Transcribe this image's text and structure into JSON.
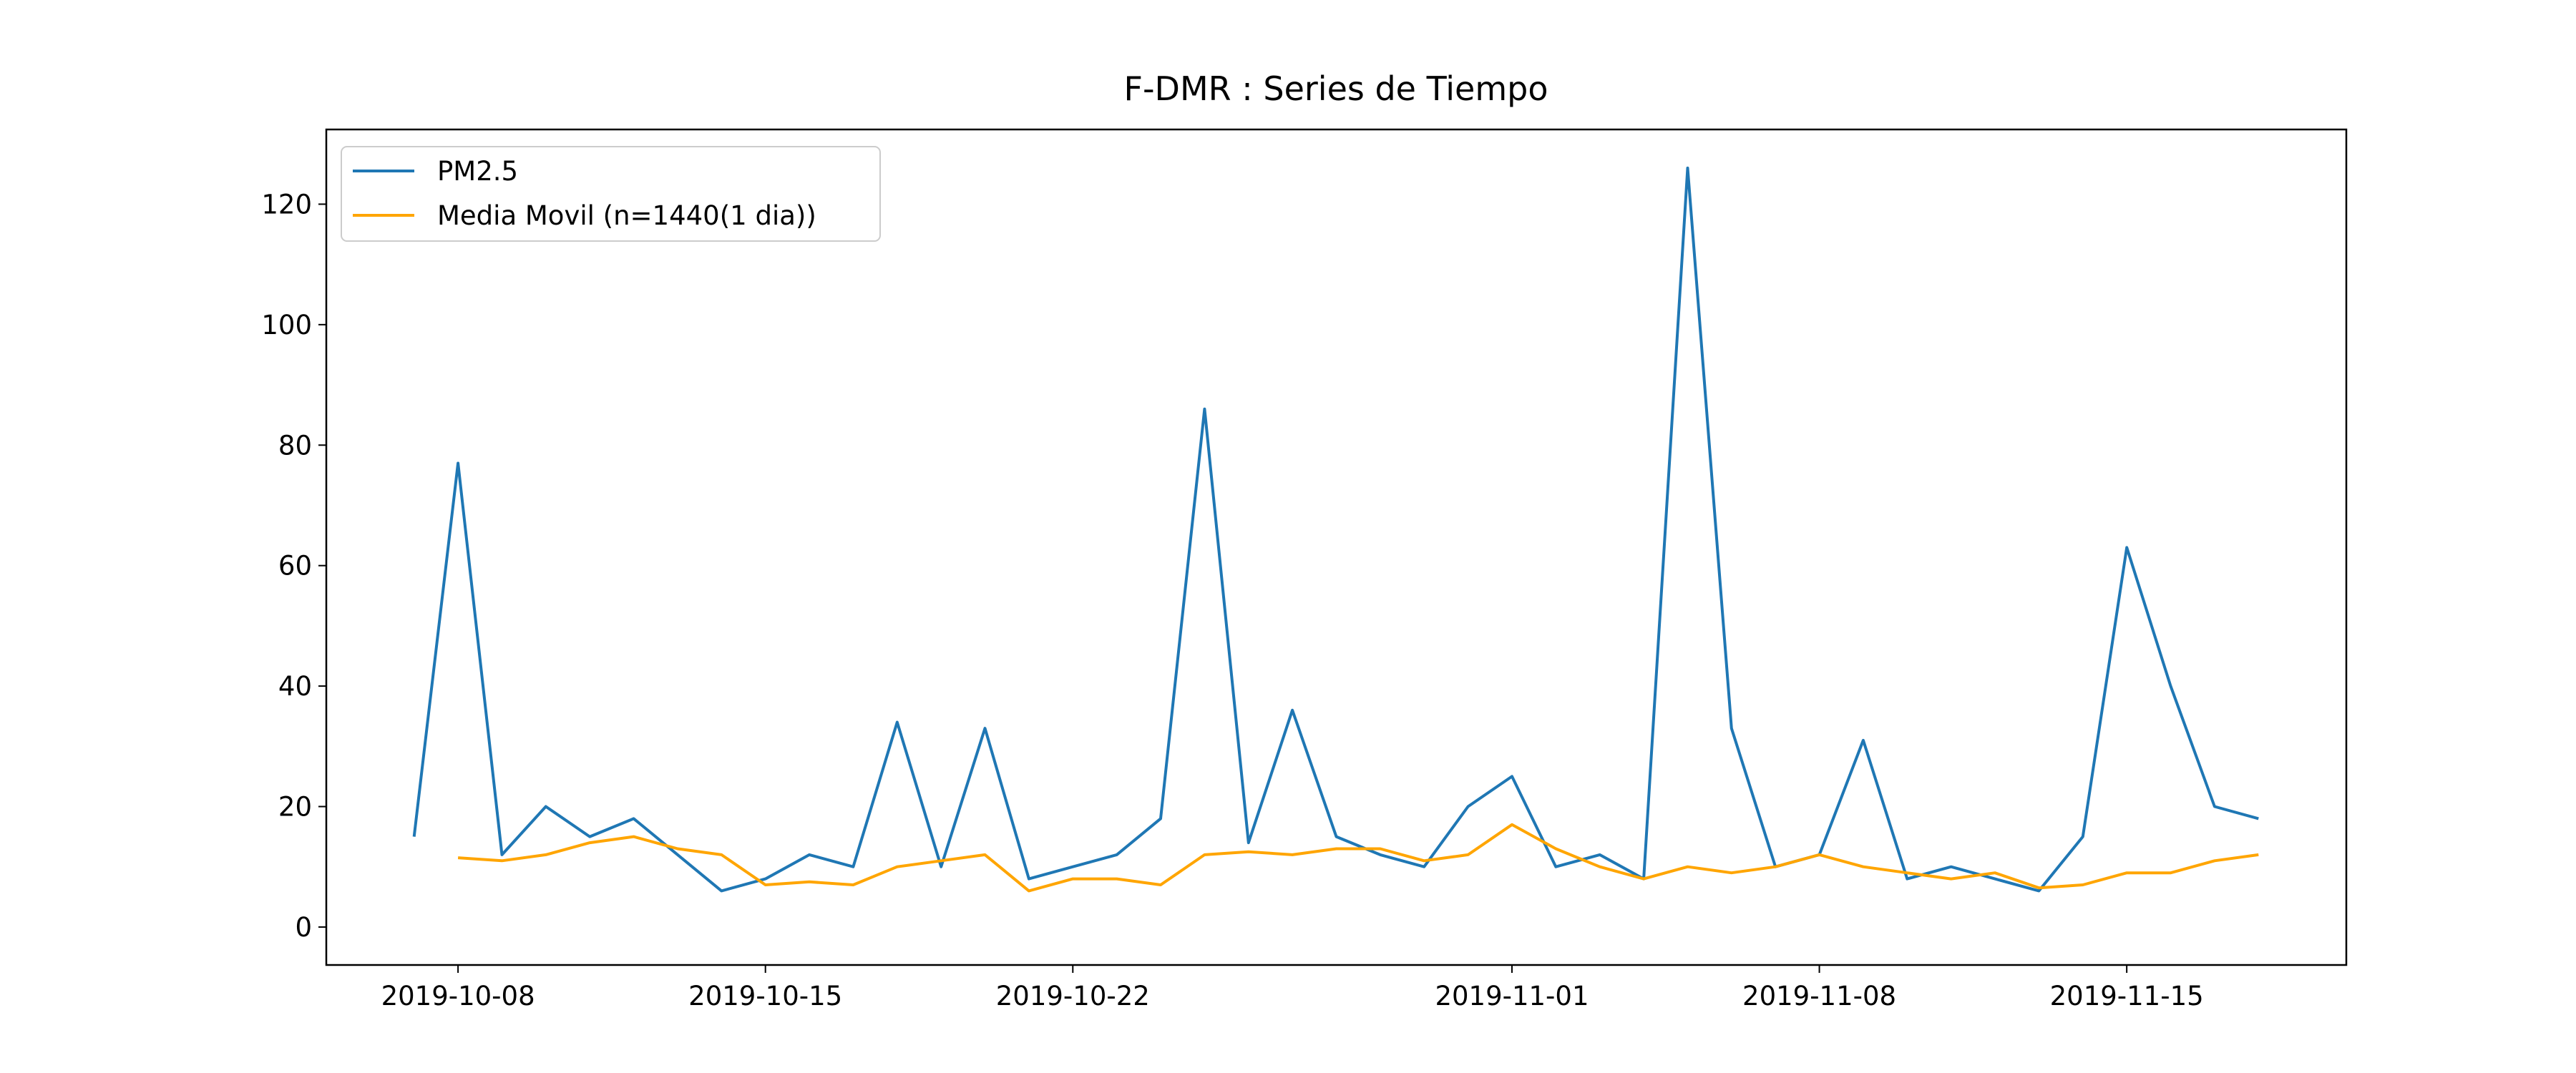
{
  "chart_data": {
    "type": "line",
    "title": "F-DMR : Series de Tiempo",
    "x": [
      "2019-10-07",
      "2019-10-08",
      "2019-10-09",
      "2019-10-10",
      "2019-10-11",
      "2019-10-12",
      "2019-10-13",
      "2019-10-14",
      "2019-10-15",
      "2019-10-16",
      "2019-10-17",
      "2019-10-18",
      "2019-10-19",
      "2019-10-20",
      "2019-10-21",
      "2019-10-22",
      "2019-10-23",
      "2019-10-24",
      "2019-10-25",
      "2019-10-26",
      "2019-10-27",
      "2019-10-28",
      "2019-10-29",
      "2019-10-30",
      "2019-10-31",
      "2019-11-01",
      "2019-11-02",
      "2019-11-03",
      "2019-11-04",
      "2019-11-05",
      "2019-11-06",
      "2019-11-07",
      "2019-11-08",
      "2019-11-09",
      "2019-11-10",
      "2019-11-11",
      "2019-11-12",
      "2019-11-13",
      "2019-11-14",
      "2019-11-15",
      "2019-11-16",
      "2019-11-17",
      "2019-11-18"
    ],
    "series": [
      {
        "name": "PM2.5",
        "color": "#1f77b4",
        "values": [
          15,
          77,
          12,
          20,
          15,
          18,
          12,
          6,
          8,
          12,
          10,
          34,
          10,
          33,
          8,
          10,
          12,
          18,
          86,
          14,
          36,
          15,
          12,
          10,
          20,
          25,
          10,
          12,
          8,
          126,
          33,
          10,
          12,
          31,
          8,
          10,
          8,
          6,
          15,
          63,
          40,
          20,
          18
        ]
      },
      {
        "name": "Media Movil (n=1440(1 dia))",
        "color": "#ffa500",
        "values": [
          null,
          11.5,
          11,
          12,
          14,
          15,
          13,
          12,
          7,
          7.5,
          7,
          10,
          11,
          12,
          6,
          8,
          8,
          7,
          12,
          12.5,
          12,
          13,
          13,
          11,
          12,
          17,
          13,
          10,
          8,
          10,
          9,
          10,
          12,
          10,
          9,
          8,
          9,
          6.5,
          7,
          9,
          9,
          11,
          12
        ]
      }
    ],
    "xlim": [
      "2019-10-05",
      "2019-11-20"
    ],
    "xticks": [
      "2019-10-08",
      "2019-10-15",
      "2019-10-22",
      "2019-11-01",
      "2019-11-08",
      "2019-11-15"
    ],
    "ylim": [
      -6.3,
      132.4
    ],
    "yticks": [
      0,
      20,
      40,
      60,
      80,
      100,
      120
    ],
    "legend": "upper left"
  }
}
